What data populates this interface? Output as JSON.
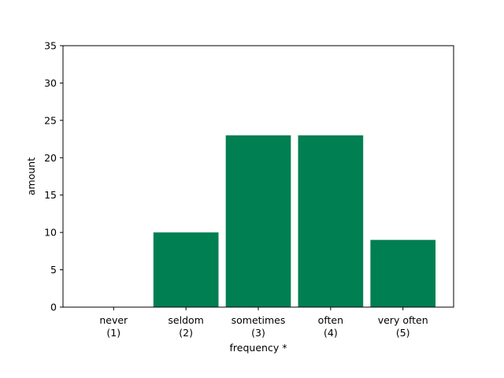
{
  "chart_data": {
    "type": "bar",
    "categories": [
      [
        "never",
        "(1)"
      ],
      [
        "seldom",
        "(2)"
      ],
      [
        "sometimes",
        "(3)"
      ],
      [
        "often",
        "(4)"
      ],
      [
        "very often",
        "(5)"
      ]
    ],
    "values": [
      0,
      10,
      23,
      23,
      9
    ],
    "title": "",
    "xlabel": "frequency *",
    "ylabel": "amount",
    "ylim": [
      0,
      35
    ],
    "yticks": [
      0,
      5,
      10,
      15,
      20,
      25,
      30,
      35
    ],
    "bar_color": "#007f53",
    "grid": false,
    "legend": "none"
  }
}
